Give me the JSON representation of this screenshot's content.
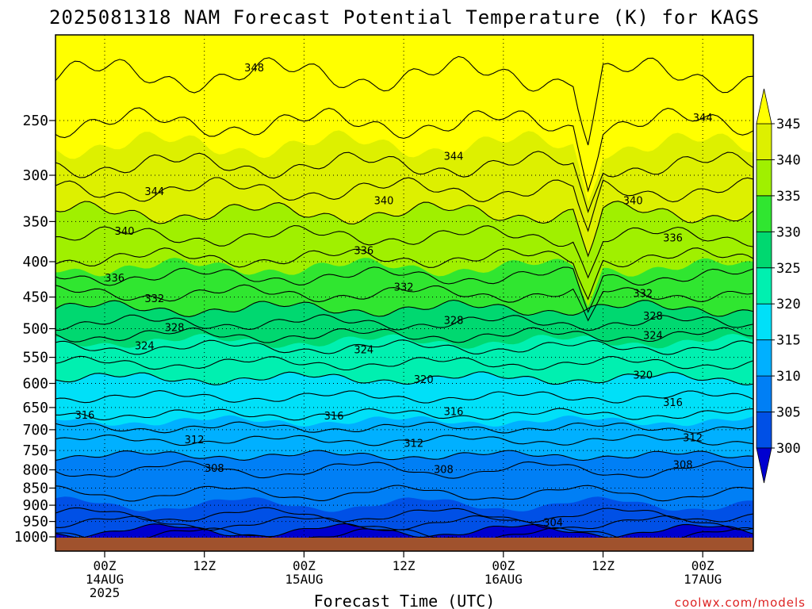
{
  "title": "2025081318 NAM Forecast Potential Temperature (K) for KAGS",
  "credit": "coolwx.com/models",
  "chart_data": {
    "type": "heatmap",
    "title": "2025081318 NAM Forecast Potential Temperature (K) for KAGS",
    "xlabel": "Forecast Time (UTC)",
    "ylabel": "",
    "x_unit": "forecast hour",
    "xlim": [
      -4,
      66
    ],
    "ylim": [
      1010,
      200
    ],
    "y_ticks": [
      1000,
      950,
      900,
      850,
      800,
      750,
      700,
      650,
      600,
      550,
      500,
      450,
      400,
      350,
      300,
      250
    ],
    "x_ticks": [
      {
        "hour": 0,
        "lines": [
          "00Z",
          "14AUG",
          "2025"
        ]
      },
      {
        "hour": 10,
        "lines": [
          "12Z"
        ]
      },
      {
        "hour": 20,
        "lines": [
          "00Z",
          "15AUG"
        ]
      },
      {
        "hour": 30,
        "lines": [
          "12Z"
        ]
      },
      {
        "hour": 40,
        "lines": [
          "00Z",
          "16AUG"
        ]
      },
      {
        "hour": 50,
        "lines": [
          "12Z"
        ]
      },
      {
        "hour": 60,
        "lines": [
          "00Z",
          "17AUG"
        ]
      }
    ],
    "grid": true,
    "colorbar": {
      "values": [
        300,
        305,
        310,
        315,
        320,
        325,
        330,
        335,
        340,
        345
      ],
      "colors": [
        "#0000d0",
        "#0050e6",
        "#007ff5",
        "#00b0ff",
        "#00e0f8",
        "#00f0b0",
        "#00d870",
        "#30e630",
        "#a0f000",
        "#ddf000",
        "#ffff00"
      ],
      "extend": "both"
    },
    "contour_labels": [
      {
        "value": "348",
        "hour": 15,
        "p": 210
      },
      {
        "value": "344",
        "hour": 60,
        "p": 248
      },
      {
        "value": "344",
        "hour": 35,
        "p": 282
      },
      {
        "value": "344",
        "hour": 5,
        "p": 317
      },
      {
        "value": "340",
        "hour": 28,
        "p": 327
      },
      {
        "value": "340",
        "hour": 53,
        "p": 327
      },
      {
        "value": "340",
        "hour": 2,
        "p": 362
      },
      {
        "value": "336",
        "hour": 57,
        "p": 370
      },
      {
        "value": "336",
        "hour": 26,
        "p": 386
      },
      {
        "value": "336",
        "hour": 1,
        "p": 423
      },
      {
        "value": "332",
        "hour": 30,
        "p": 436
      },
      {
        "value": "332",
        "hour": 54,
        "p": 445
      },
      {
        "value": "332",
        "hour": 5,
        "p": 453
      },
      {
        "value": "328",
        "hour": 55,
        "p": 480
      },
      {
        "value": "328",
        "hour": 35,
        "p": 487
      },
      {
        "value": "328",
        "hour": 7,
        "p": 499
      },
      {
        "value": "324",
        "hour": 55,
        "p": 512
      },
      {
        "value": "324",
        "hour": 4,
        "p": 530
      },
      {
        "value": "324",
        "hour": 26,
        "p": 537
      },
      {
        "value": "320",
        "hour": 32,
        "p": 593
      },
      {
        "value": "320",
        "hour": 54,
        "p": 584
      },
      {
        "value": "316",
        "hour": 57,
        "p": 640
      },
      {
        "value": "316",
        "hour": -2,
        "p": 668
      },
      {
        "value": "316",
        "hour": 23,
        "p": 669
      },
      {
        "value": "316",
        "hour": 35,
        "p": 660
      },
      {
        "value": "312",
        "hour": 59,
        "p": 720
      },
      {
        "value": "312",
        "hour": 9,
        "p": 725
      },
      {
        "value": "312",
        "hour": 31,
        "p": 733
      },
      {
        "value": "308",
        "hour": 11,
        "p": 797
      },
      {
        "value": "308",
        "hour": 34,
        "p": 800
      },
      {
        "value": "308",
        "hour": 58,
        "p": 787
      },
      {
        "value": "304",
        "hour": 45,
        "p": 955
      }
    ]
  }
}
